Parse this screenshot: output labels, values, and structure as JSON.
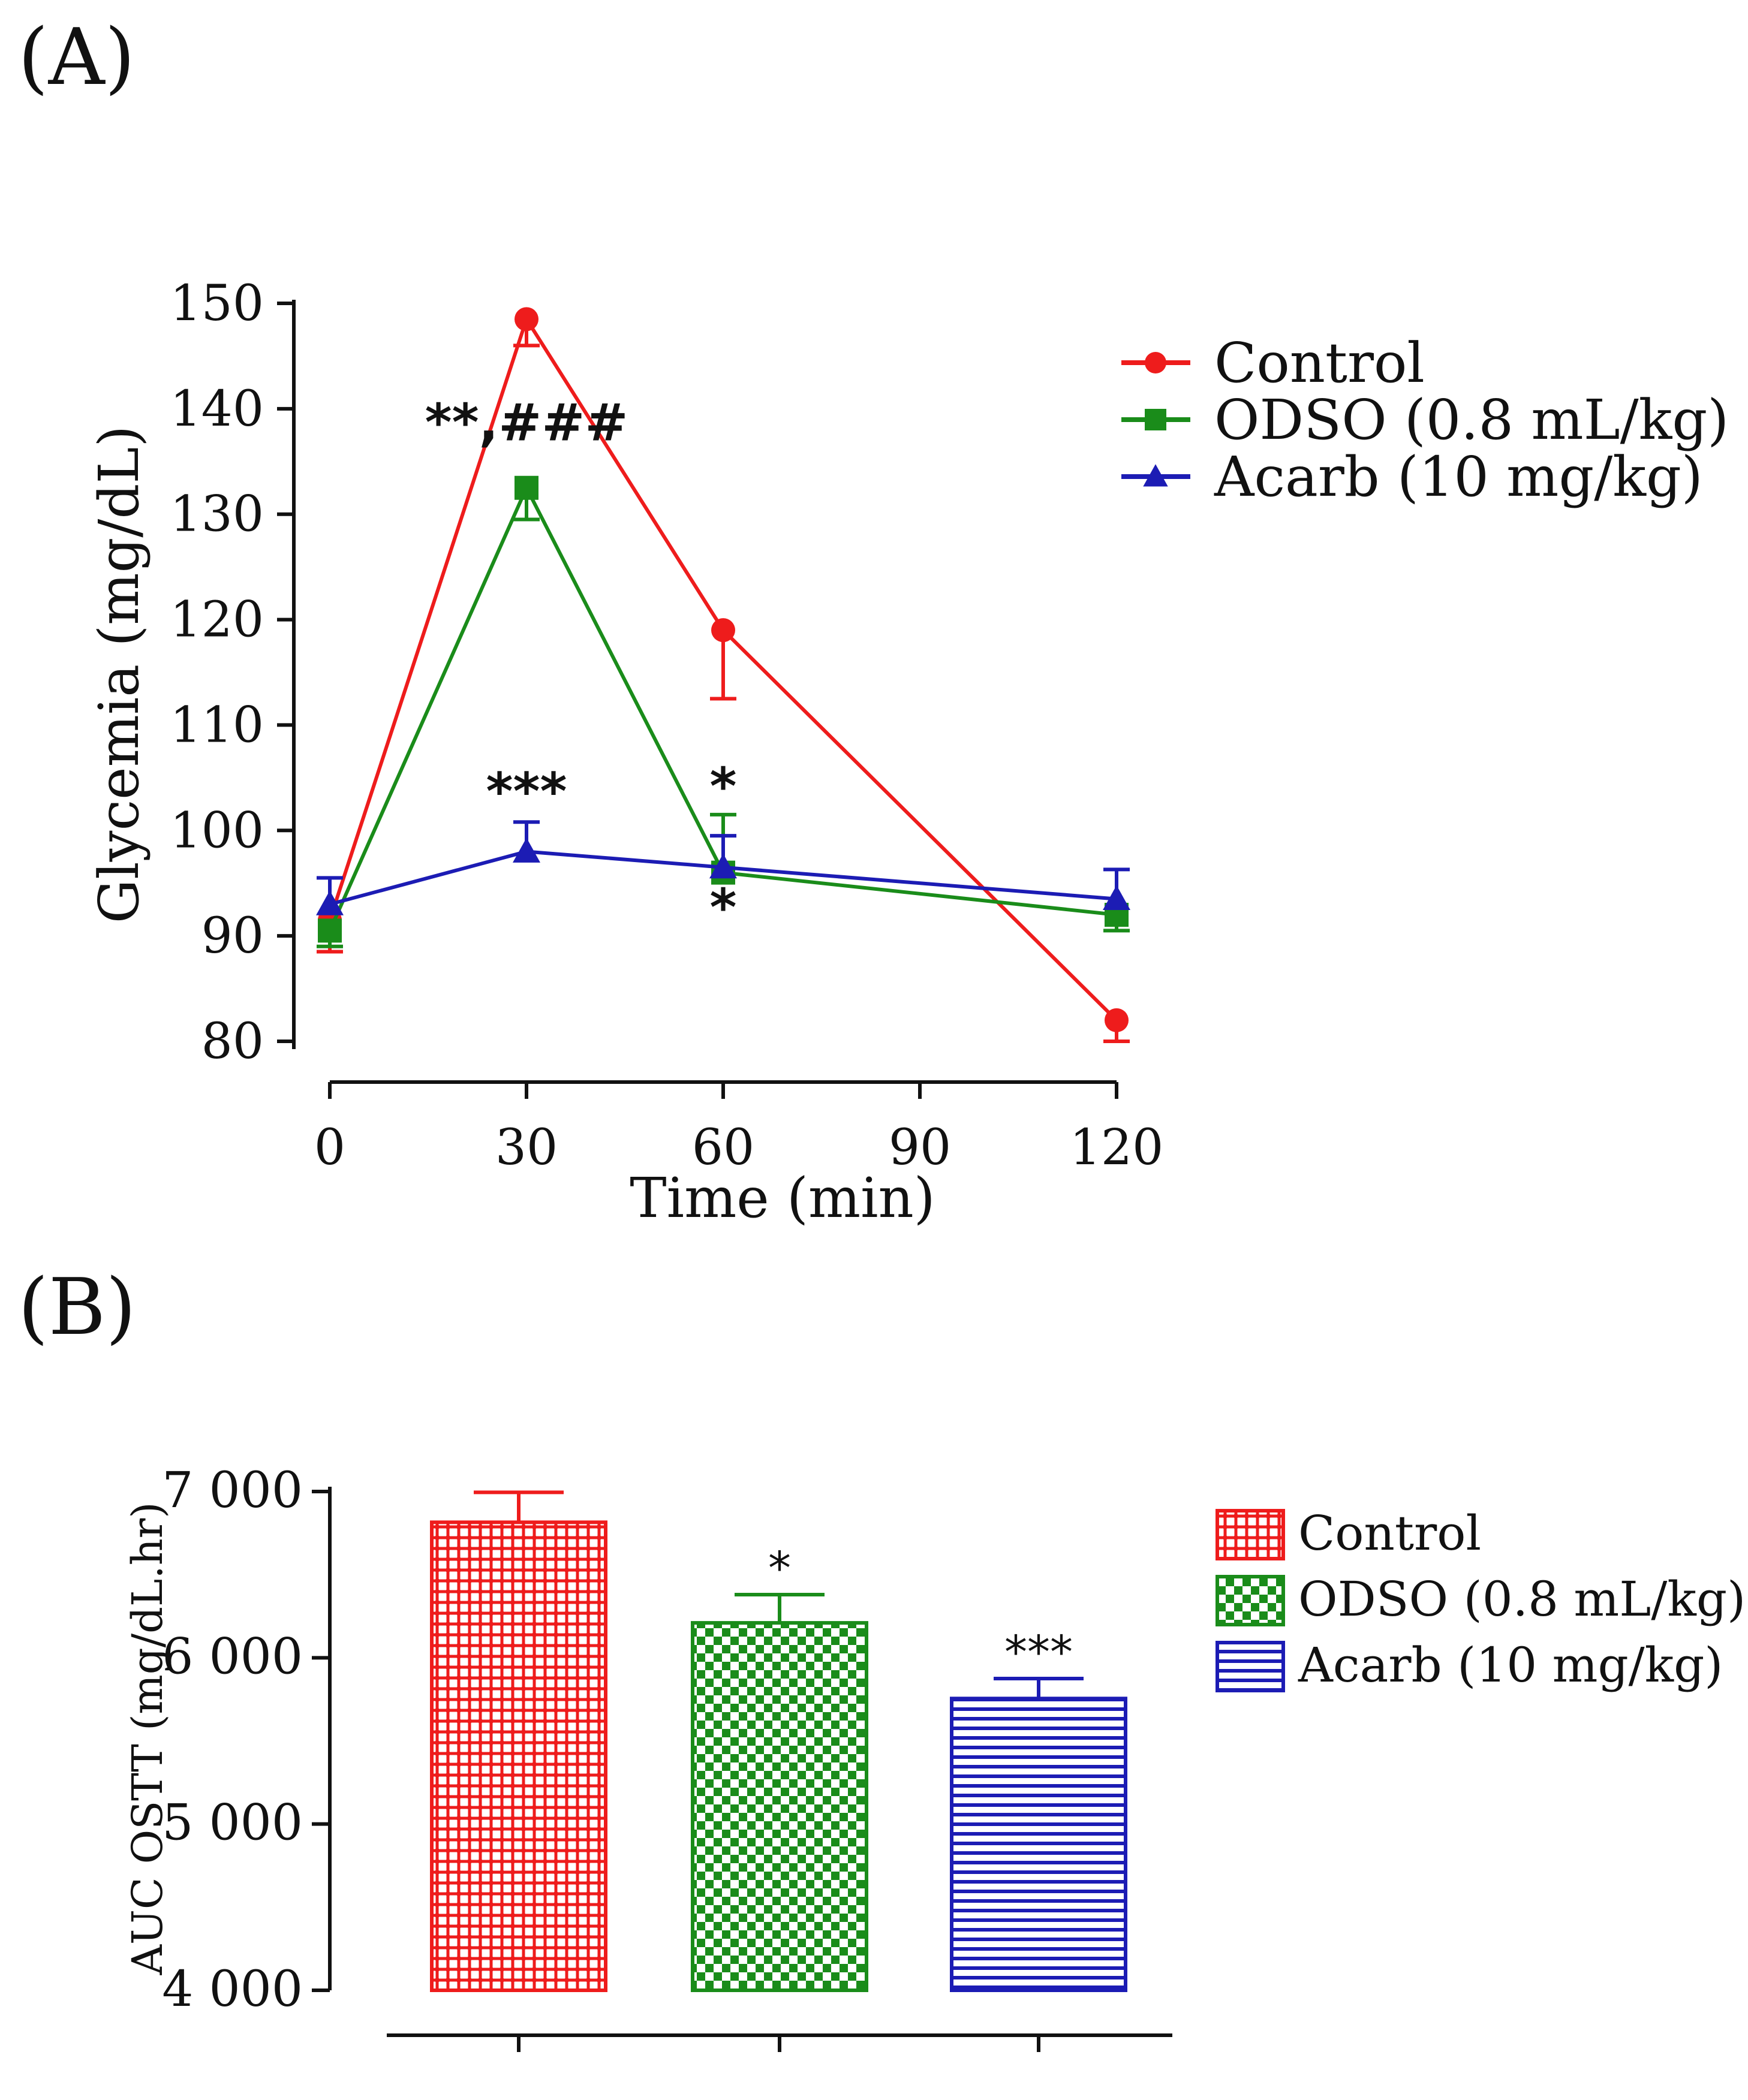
{
  "chart_data": [
    {
      "panel": "(A)",
      "type": "line",
      "xlabel": "Time (min)",
      "ylabel": "Glycemia (mg/dL)",
      "xlim": [
        0,
        120
      ],
      "ylim": [
        80,
        150
      ],
      "xticks": [
        "0",
        "30",
        "60",
        "90",
        "120"
      ],
      "yticks": [
        "80",
        "90",
        "100",
        "110",
        "120",
        "130",
        "140",
        "150"
      ],
      "legend_position": "top-right",
      "x": [
        0,
        30,
        60,
        120
      ],
      "series": [
        {
          "name": "Control",
          "color": "#ee1c1c",
          "marker": "circle",
          "values": [
            91.5,
            148.5,
            119,
            82
          ],
          "errors": [
            3,
            2.5,
            6.5,
            2
          ]
        },
        {
          "name": "ODSO (0.8 mL/kg)",
          "color": "#1a8c1a",
          "marker": "square",
          "values": [
            90.5,
            132.5,
            96,
            92
          ],
          "errors": [
            1.5,
            3,
            5.5,
            1.5
          ]
        },
        {
          "name": "Acarb (10 mg/kg)",
          "color": "#1c1cb4",
          "marker": "triangle",
          "values": [
            93,
            98,
            96.5,
            93.5
          ],
          "errors": [
            2.5,
            2.8,
            3,
            2.8
          ]
        }
      ],
      "annotations": [
        {
          "text": "**,###",
          "x": 30,
          "y": 137
        },
        {
          "text": "***",
          "x": 30,
          "y": 102
        },
        {
          "text": "*",
          "x": 60,
          "y": 102.5
        },
        {
          "text": "*",
          "x": 60,
          "y": 91
        }
      ]
    },
    {
      "panel": "(B)",
      "type": "bar",
      "ylabel": "AUC OSTT (mg/dL.hr)",
      "ylim": [
        4000,
        7000
      ],
      "yticks": [
        "4 000",
        "5 000",
        "6 000",
        "7 000"
      ],
      "legend_position": "top-right",
      "categories": [
        "Control",
        "ODSO (0.8 mL/kg)",
        "Acarb (10 mg/kg)"
      ],
      "values": [
        6815,
        6210,
        5755
      ],
      "errors": [
        180,
        170,
        120
      ],
      "colors": [
        "#ee1c1c",
        "#1a8c1a",
        "#1c1cb4"
      ],
      "patterns": [
        "dense-grid",
        "checker",
        "horizontal-lines"
      ],
      "annotations": [
        "",
        "*",
        "***"
      ]
    }
  ]
}
